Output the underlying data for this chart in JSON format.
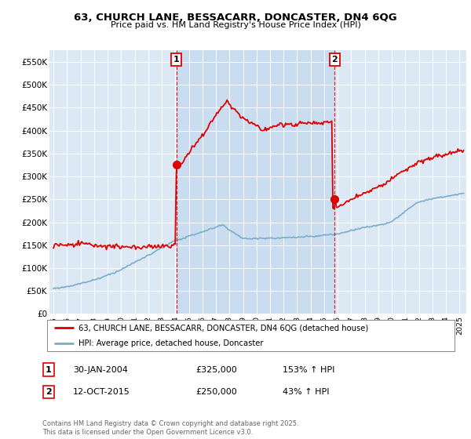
{
  "title": "63, CHURCH LANE, BESSACARR, DONCASTER, DN4 6QG",
  "subtitle": "Price paid vs. HM Land Registry's House Price Index (HPI)",
  "yticks": [
    0,
    50000,
    100000,
    150000,
    200000,
    250000,
    300000,
    350000,
    400000,
    450000,
    500000,
    550000
  ],
  "ytick_labels": [
    "£0",
    "£50K",
    "£100K",
    "£150K",
    "£200K",
    "£250K",
    "£300K",
    "£350K",
    "£400K",
    "£450K",
    "£500K",
    "£550K"
  ],
  "xlim_start": 1994.7,
  "xlim_end": 2025.5,
  "ylim_min": 0,
  "ylim_max": 575000,
  "transaction1_x": 2004.08,
  "transaction1_y": 325000,
  "transaction1_label": "1",
  "transaction2_x": 2015.78,
  "transaction2_y": 250000,
  "transaction2_label": "2",
  "red_line_color": "#dd0000",
  "blue_line_color": "#7aadcc",
  "marker_box_color": "#dd0000",
  "vline_color": "#dd0000",
  "bg_color": "#dde8f5",
  "bg_between_color": "#c8dcf0",
  "legend_line1": "63, CHURCH LANE, BESSACARR, DONCASTER, DN4 6QG (detached house)",
  "legend_line2": "HPI: Average price, detached house, Doncaster",
  "annot1_date": "30-JAN-2004",
  "annot1_price": "£325,000",
  "annot1_hpi": "153% ↑ HPI",
  "annot2_date": "12-OCT-2015",
  "annot2_price": "£250,000",
  "annot2_hpi": "43% ↑ HPI",
  "footer": "Contains HM Land Registry data © Crown copyright and database right 2025.\nThis data is licensed under the Open Government Licence v3.0."
}
